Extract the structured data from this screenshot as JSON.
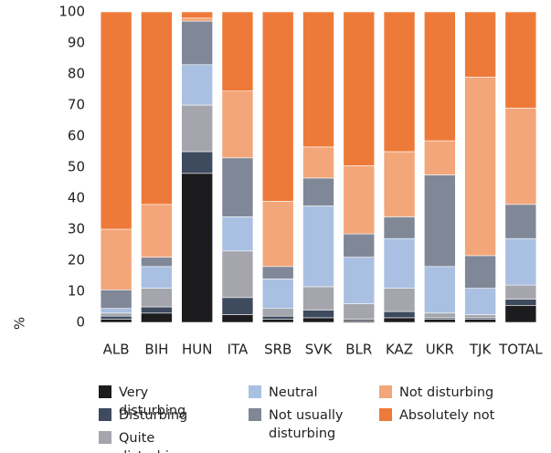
{
  "chart_data": {
    "type": "stacked_bar",
    "y_label": "%",
    "categories": [
      "ALB",
      "BIH",
      "HUN",
      "ITA",
      "SRB",
      "SVK",
      "BLR",
      "KAZ",
      "UKR",
      "TJK",
      "TOTAL"
    ],
    "series": [
      {
        "name": "Very disturbing",
        "color": "#1c1c1e",
        "values": [
          1,
          3,
          48,
          2.5,
          1,
          1.5,
          0.5,
          1.5,
          1,
          1,
          5.5
        ]
      },
      {
        "name": "Disturbing",
        "color": "#3e4a5e",
        "values": [
          1,
          2,
          7,
          5.5,
          1,
          2.5,
          0.5,
          2,
          0.5,
          0.5,
          2
        ]
      },
      {
        "name": "Quite disturbing",
        "color": "#a5a5ad",
        "values": [
          1,
          6,
          15,
          15,
          2.5,
          7.5,
          5,
          7.5,
          1.5,
          1,
          4.5
        ]
      },
      {
        "name": "Neutral",
        "color": "#a9c0e2",
        "values": [
          1.5,
          7,
          13,
          11,
          9.5,
          26,
          15,
          16,
          15,
          8.5,
          15
        ]
      },
      {
        "name": "Not usually disturbing",
        "color": "#808898",
        "values": [
          6,
          3,
          14,
          19,
          4,
          9,
          7.5,
          7,
          29.5,
          10.5,
          11
        ]
      },
      {
        "name": "Not disturbing",
        "color": "#f3a679",
        "values": [
          19.5,
          17,
          1,
          21.5,
          21,
          10,
          22,
          21,
          11,
          57.5,
          31
        ]
      },
      {
        "name": "Absolutely not",
        "color": "#ee7a39",
        "values": [
          70,
          62,
          2,
          25.5,
          61,
          43.5,
          49.5,
          45,
          41.5,
          21,
          31
        ]
      }
    ],
    "ylim": [
      0,
      100
    ],
    "yticks": [
      0,
      10,
      20,
      30,
      40,
      50,
      60,
      70,
      80,
      90,
      100
    ]
  }
}
